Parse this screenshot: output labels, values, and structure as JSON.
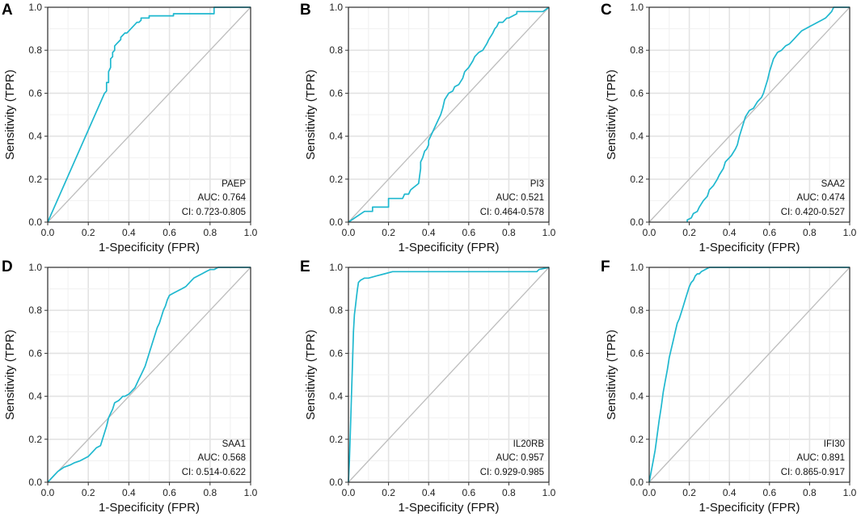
{
  "figure": {
    "background": "#ffffff"
  },
  "colors": {
    "roc": "#1fb8cf",
    "diagonal": "#bdbdbd",
    "frame": "#222222"
  },
  "chart_data": [
    {
      "type": "line",
      "panel": "A",
      "marker": "PAEP",
      "auc_text": "AUC: 0.764",
      "ci_text": "CI: 0.723-0.805",
      "xlabel": "1-Specificity (FPR)",
      "ylabel": "Sensitivity (TPR)",
      "xlim": [
        0,
        1
      ],
      "ylim": [
        0,
        1
      ],
      "ticks": [
        "0.0",
        "0.2",
        "0.4",
        "0.6",
        "0.8",
        "1.0"
      ],
      "series": [
        {
          "name": "PAEP",
          "x": [
            0,
            0.28,
            0.29,
            0.29,
            0.3,
            0.3,
            0.31,
            0.31,
            0.32,
            0.32,
            0.33,
            0.33,
            0.34,
            0.35,
            0.36,
            0.36,
            0.37,
            0.38,
            0.39,
            0.4,
            0.41,
            0.42,
            0.43,
            0.44,
            0.45,
            0.46,
            0.46,
            0.5,
            0.5,
            0.62,
            0.62,
            0.82,
            0.82,
            1.0
          ],
          "y": [
            0,
            0.6,
            0.61,
            0.65,
            0.65,
            0.7,
            0.72,
            0.76,
            0.77,
            0.79,
            0.8,
            0.82,
            0.83,
            0.84,
            0.85,
            0.86,
            0.87,
            0.88,
            0.88,
            0.89,
            0.9,
            0.91,
            0.92,
            0.93,
            0.93,
            0.94,
            0.95,
            0.95,
            0.96,
            0.96,
            0.97,
            0.97,
            1.0,
            1.0
          ]
        }
      ]
    },
    {
      "type": "line",
      "panel": "B",
      "marker": "PI3",
      "auc_text": "AUC: 0.521",
      "ci_text": "CI: 0.464-0.578",
      "xlabel": "1-Specificity (FPR)",
      "ylabel": "Sensitivity (TPR)",
      "xlim": [
        0,
        1
      ],
      "ylim": [
        0,
        1
      ],
      "ticks": [
        "0.0",
        "0.2",
        "0.4",
        "0.6",
        "0.8",
        "1.0"
      ],
      "series": [
        {
          "name": "PI3",
          "x": [
            0,
            0.08,
            0.12,
            0.12,
            0.2,
            0.2,
            0.27,
            0.28,
            0.3,
            0.31,
            0.35,
            0.36,
            0.36,
            0.37,
            0.38,
            0.39,
            0.4,
            0.4,
            0.41,
            0.42,
            0.43,
            0.44,
            0.45,
            0.46,
            0.47,
            0.48,
            0.5,
            0.52,
            0.53,
            0.55,
            0.57,
            0.58,
            0.6,
            0.62,
            0.63,
            0.65,
            0.67,
            0.69,
            0.7,
            0.72,
            0.73,
            0.74,
            0.75,
            0.77,
            0.79,
            0.8,
            0.82,
            0.84,
            0.84,
            0.97,
            1.0
          ],
          "y": [
            0,
            0.05,
            0.05,
            0.07,
            0.07,
            0.11,
            0.11,
            0.13,
            0.13,
            0.15,
            0.18,
            0.25,
            0.28,
            0.3,
            0.33,
            0.34,
            0.36,
            0.38,
            0.4,
            0.42,
            0.44,
            0.46,
            0.48,
            0.5,
            0.53,
            0.57,
            0.6,
            0.61,
            0.63,
            0.64,
            0.67,
            0.7,
            0.72,
            0.75,
            0.77,
            0.79,
            0.8,
            0.83,
            0.85,
            0.88,
            0.9,
            0.91,
            0.93,
            0.93,
            0.95,
            0.95,
            0.96,
            0.97,
            0.98,
            0.98,
            1.0
          ]
        }
      ]
    },
    {
      "type": "line",
      "panel": "C",
      "marker": "SAA2",
      "auc_text": "AUC: 0.474",
      "ci_text": "CI: 0.420-0.527",
      "xlabel": "1-Specificity (FPR)",
      "ylabel": "Sensitivity (TPR)",
      "xlim": [
        0,
        1
      ],
      "ylim": [
        0,
        1
      ],
      "ticks": [
        "0.0",
        "0.2",
        "0.4",
        "0.6",
        "0.8",
        "1.0"
      ],
      "series": [
        {
          "name": "SAA2",
          "x": [
            0.19,
            0.19,
            0.21,
            0.22,
            0.24,
            0.25,
            0.27,
            0.29,
            0.3,
            0.32,
            0.34,
            0.35,
            0.37,
            0.38,
            0.4,
            0.41,
            0.43,
            0.44,
            0.45,
            0.46,
            0.47,
            0.48,
            0.5,
            0.52,
            0.54,
            0.56,
            0.57,
            0.58,
            0.59,
            0.6,
            0.61,
            0.62,
            0.64,
            0.66,
            0.68,
            0.7,
            0.72,
            0.74,
            0.76,
            0.78,
            0.8,
            0.82,
            0.84,
            0.86,
            0.88,
            0.9,
            0.91,
            0.92,
            1.0
          ],
          "y": [
            0,
            0.01,
            0.02,
            0.04,
            0.05,
            0.07,
            0.1,
            0.12,
            0.15,
            0.17,
            0.2,
            0.22,
            0.25,
            0.28,
            0.3,
            0.31,
            0.34,
            0.36,
            0.4,
            0.43,
            0.46,
            0.49,
            0.52,
            0.53,
            0.56,
            0.58,
            0.6,
            0.63,
            0.66,
            0.7,
            0.73,
            0.76,
            0.79,
            0.8,
            0.82,
            0.83,
            0.85,
            0.87,
            0.89,
            0.9,
            0.91,
            0.92,
            0.93,
            0.94,
            0.95,
            0.97,
            0.98,
            1.0,
            1.0
          ]
        }
      ]
    },
    {
      "type": "line",
      "panel": "D",
      "marker": "SAA1",
      "auc_text": "AUC: 0.568",
      "ci_text": "CI: 0.514-0.622",
      "xlabel": "1-Specificity (FPR)",
      "ylabel": "Sensitivity (TPR)",
      "xlim": [
        0,
        1
      ],
      "ylim": [
        0,
        1
      ],
      "ticks": [
        "0.0",
        "0.2",
        "0.4",
        "0.6",
        "0.8",
        "1.0"
      ],
      "series": [
        {
          "name": "SAA1",
          "x": [
            0,
            0.03,
            0.05,
            0.08,
            0.11,
            0.13,
            0.16,
            0.18,
            0.2,
            0.22,
            0.24,
            0.26,
            0.27,
            0.28,
            0.29,
            0.3,
            0.31,
            0.32,
            0.33,
            0.35,
            0.36,
            0.37,
            0.38,
            0.4,
            0.41,
            0.43,
            0.44,
            0.45,
            0.46,
            0.47,
            0.48,
            0.49,
            0.5,
            0.51,
            0.52,
            0.53,
            0.54,
            0.55,
            0.56,
            0.57,
            0.58,
            0.59,
            0.6,
            0.62,
            0.64,
            0.66,
            0.68,
            0.7,
            0.72,
            0.74,
            0.76,
            0.78,
            0.8,
            0.82,
            0.84,
            1.0
          ],
          "y": [
            0,
            0.03,
            0.05,
            0.07,
            0.08,
            0.09,
            0.1,
            0.11,
            0.12,
            0.14,
            0.16,
            0.17,
            0.2,
            0.23,
            0.26,
            0.3,
            0.32,
            0.34,
            0.37,
            0.38,
            0.39,
            0.4,
            0.4,
            0.41,
            0.42,
            0.44,
            0.46,
            0.48,
            0.5,
            0.52,
            0.54,
            0.57,
            0.6,
            0.63,
            0.66,
            0.69,
            0.72,
            0.74,
            0.77,
            0.8,
            0.82,
            0.85,
            0.87,
            0.88,
            0.89,
            0.9,
            0.91,
            0.93,
            0.95,
            0.96,
            0.97,
            0.98,
            0.99,
            0.99,
            1.0,
            1.0
          ]
        }
      ]
    },
    {
      "type": "line",
      "panel": "E",
      "marker": "IL20RB",
      "auc_text": "AUC: 0.957",
      "ci_text": "CI: 0.929-0.985",
      "xlabel": "1-Specificity (FPR)",
      "ylabel": "Sensitivity (TPR)",
      "xlim": [
        0,
        1
      ],
      "ylim": [
        0,
        1
      ],
      "ticks": [
        "0.0",
        "0.2",
        "0.4",
        "0.6",
        "0.8",
        "1.0"
      ],
      "series": [
        {
          "name": "IL20RB",
          "x": [
            0,
            0.005,
            0.01,
            0.015,
            0.02,
            0.025,
            0.03,
            0.035,
            0.04,
            0.045,
            0.05,
            0.06,
            0.08,
            0.1,
            0.14,
            0.18,
            0.22,
            0.4,
            0.6,
            0.8,
            0.94,
            0.95,
            1.0
          ],
          "y": [
            0,
            0.1,
            0.25,
            0.4,
            0.55,
            0.7,
            0.78,
            0.82,
            0.86,
            0.9,
            0.93,
            0.94,
            0.95,
            0.95,
            0.96,
            0.97,
            0.98,
            0.98,
            0.98,
            0.98,
            0.98,
            0.99,
            1.0
          ]
        }
      ]
    },
    {
      "type": "line",
      "panel": "F",
      "marker": "IFI30",
      "auc_text": "AUC: 0.891",
      "ci_text": "CI: 0.865-0.917",
      "xlabel": "1-Specificity (FPR)",
      "ylabel": "Sensitivity (TPR)",
      "xlim": [
        0,
        1
      ],
      "ylim": [
        0,
        1
      ],
      "ticks": [
        "0.0",
        "0.2",
        "0.4",
        "0.6",
        "0.8",
        "1.0"
      ],
      "series": [
        {
          "name": "IFI30",
          "x": [
            0,
            0.01,
            0.02,
            0.03,
            0.04,
            0.05,
            0.06,
            0.07,
            0.08,
            0.09,
            0.1,
            0.11,
            0.12,
            0.13,
            0.14,
            0.15,
            0.16,
            0.17,
            0.18,
            0.19,
            0.2,
            0.21,
            0.22,
            0.23,
            0.24,
            0.25,
            0.26,
            0.3,
            0.4,
            0.6,
            0.8,
            1.0
          ],
          "y": [
            0,
            0.05,
            0.1,
            0.15,
            0.22,
            0.29,
            0.35,
            0.42,
            0.47,
            0.52,
            0.58,
            0.62,
            0.66,
            0.7,
            0.74,
            0.76,
            0.79,
            0.82,
            0.85,
            0.88,
            0.91,
            0.93,
            0.94,
            0.96,
            0.97,
            0.97,
            0.98,
            1.0,
            1.0,
            1.0,
            1.0,
            1.0
          ]
        }
      ]
    }
  ]
}
